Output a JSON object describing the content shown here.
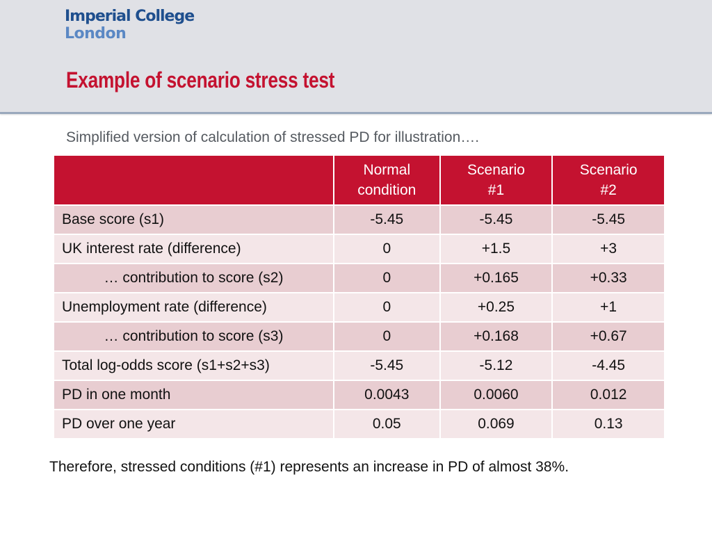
{
  "header": {
    "logo_line1": "Imperial College",
    "logo_line2": "London",
    "title": "Example of scenario stress test"
  },
  "subtitle": "Simplified version of calculation of stressed PD for illustration….",
  "table": {
    "columns": [
      "",
      "Normal condition",
      "Scenario #1",
      "Scenario #2"
    ],
    "rows": [
      {
        "label": "Base score (s1)",
        "values": [
          "-5.45",
          "-5.45",
          "-5.45"
        ],
        "indent": false
      },
      {
        "label": "UK interest rate (difference)",
        "values": [
          "0",
          "+1.5",
          "+3"
        ],
        "indent": false
      },
      {
        "label": "… contribution to score (s2)",
        "values": [
          "0",
          "+0.165",
          "+0.33"
        ],
        "indent": true
      },
      {
        "label": "Unemployment rate (difference)",
        "values": [
          "0",
          "+0.25",
          "+1"
        ],
        "indent": false
      },
      {
        "label": "… contribution to score (s3)",
        "values": [
          "0",
          "+0.168",
          "+0.67"
        ],
        "indent": true
      },
      {
        "label": "Total log-odds score (s1+s2+s3)",
        "values": [
          "-5.45",
          "-5.12",
          "-4.45"
        ],
        "indent": false
      },
      {
        "label": "PD in one month",
        "values": [
          "0.0043",
          "0.0060",
          "0.012"
        ],
        "indent": false
      },
      {
        "label": "PD over one year",
        "values": [
          "0.05",
          "0.069",
          "0.13"
        ],
        "indent": false
      }
    ]
  },
  "conclusion": "Therefore, stressed conditions (#1) represents an increase in PD of almost 38%.",
  "colors": {
    "accent_red": "#c41230",
    "row_dark": "#e8cdd1",
    "row_light": "#f4e6e8",
    "header_band": "#e0e1e6",
    "logo_blue": "#1f4f8e"
  }
}
